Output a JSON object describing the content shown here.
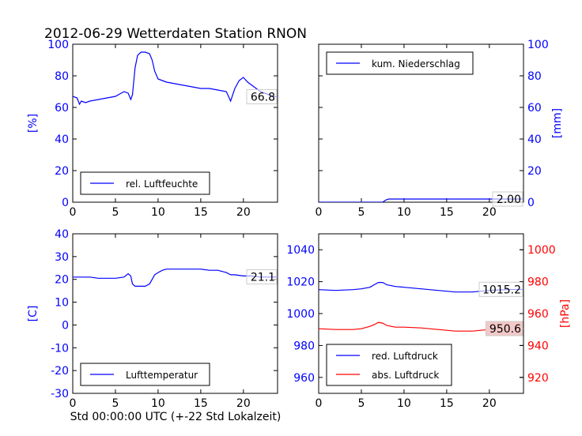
{
  "title": "2012-06-29 Wetterdaten Station RNON",
  "xlabel": "Std 00:00:00 UTC (+-22 Std Lokalzeit)",
  "colors": {
    "blue": "#0000ff",
    "red": "#ff0000",
    "label_box_gray": "#cccccc",
    "label_box_pink": "#f4c8c8"
  },
  "chart_data": [
    {
      "id": "humidity",
      "type": "line",
      "xlim": [
        0,
        24
      ],
      "xticks": [
        0,
        5,
        10,
        15,
        20
      ],
      "ylim": [
        0,
        100
      ],
      "yticks": [
        0,
        20,
        40,
        60,
        80,
        100
      ],
      "ylabel": "[%]",
      "yaxis_side": "left",
      "legend_placement": "lower-left",
      "current_value_label": "66.8",
      "series": [
        {
          "name": "rel. Luftfeuchte",
          "color": "#0000ff",
          "x": [
            0,
            0.5,
            0.8,
            1,
            1.5,
            2,
            3,
            4,
            5,
            6,
            6.5,
            6.8,
            7,
            7.3,
            7.6,
            8,
            8.5,
            9,
            9.3,
            9.6,
            10,
            10.5,
            11,
            12,
            13,
            14,
            15,
            16,
            17,
            18,
            18.5,
            19,
            19.5,
            20,
            20.5,
            21,
            21.5,
            22,
            22.5,
            23,
            23.5,
            24
          ],
          "y": [
            67,
            66,
            62,
            64,
            63,
            64,
            65,
            66,
            67,
            70,
            69,
            65,
            68,
            85,
            93,
            95,
            95,
            94,
            90,
            83,
            78,
            77,
            76,
            75,
            74,
            73,
            72,
            72,
            71,
            70,
            64,
            72,
            77,
            79,
            76,
            74,
            72,
            70,
            69,
            68,
            67,
            66.8
          ]
        }
      ]
    },
    {
      "id": "precipitation",
      "type": "line",
      "xlim": [
        0,
        24
      ],
      "xticks": [
        0,
        5,
        10,
        15,
        20
      ],
      "ylim": [
        0,
        100
      ],
      "yticks": [
        0,
        20,
        40,
        60,
        80,
        100
      ],
      "ylabel": "[mm]",
      "yaxis_side": "right",
      "legend_placement": "upper-left",
      "current_value_label": "2.00",
      "series": [
        {
          "name": "kum. Niederschlag",
          "color": "#0000ff",
          "x": [
            0,
            7.5,
            7.9,
            8.2,
            24
          ],
          "y": [
            0,
            0,
            1.5,
            2,
            2
          ]
        }
      ]
    },
    {
      "id": "temperature",
      "type": "line",
      "xlim": [
        0,
        24
      ],
      "xticks": [
        0,
        5,
        10,
        15,
        20
      ],
      "ylim": [
        -30,
        40
      ],
      "yticks": [
        -30,
        -20,
        -10,
        0,
        10,
        20,
        30,
        40
      ],
      "ylabel": "[C]",
      "yaxis_side": "left",
      "legend_placement": "lower-left",
      "current_value_label": "21.1",
      "series": [
        {
          "name": "Lufttemperatur",
          "color": "#0000ff",
          "x": [
            0,
            1,
            2,
            3,
            4,
            5,
            6,
            6.5,
            6.8,
            7,
            7.3,
            7.6,
            8,
            8.5,
            9,
            9.3,
            9.6,
            10,
            10.5,
            11,
            12,
            13,
            14,
            15,
            16,
            17,
            18,
            18.5,
            19,
            20,
            21,
            22,
            23,
            24
          ],
          "y": [
            21,
            21,
            21,
            20.5,
            20.5,
            20.5,
            21,
            22.5,
            21.5,
            18,
            17,
            17,
            17,
            17,
            18,
            20,
            22,
            23,
            24,
            24.5,
            24.5,
            24.5,
            24.5,
            24.5,
            24,
            24,
            23,
            22,
            22,
            21.5,
            21.5,
            21,
            21,
            21.1
          ]
        }
      ]
    },
    {
      "id": "pressure",
      "type": "line",
      "xlim": [
        0,
        24
      ],
      "xticks": [
        0,
        5,
        10,
        15,
        20
      ],
      "ylim": [
        950,
        1050
      ],
      "yticks": [
        960,
        980,
        1000,
        1020,
        1040
      ],
      "ylabel": "",
      "yaxis_side": "left",
      "y2lim": [
        910,
        1010
      ],
      "y2ticks": [
        920,
        940,
        960,
        980,
        1000
      ],
      "y2label": "[hPa]",
      "legend_placement": "lower-left",
      "current_value_label": "1015.2",
      "current_value_label_2": "950.6",
      "series": [
        {
          "name": "red. Luftdruck",
          "color": "#0000ff",
          "axis": "left",
          "x": [
            0,
            2,
            4,
            5,
            6,
            6.5,
            7,
            7.5,
            8,
            9,
            10,
            12,
            14,
            16,
            18,
            20,
            22,
            24
          ],
          "y": [
            1015,
            1014.5,
            1015,
            1015.5,
            1016.5,
            1018,
            1019.5,
            1019.5,
            1018,
            1017,
            1016.5,
            1015.5,
            1014.5,
            1013.5,
            1013.5,
            1014.5,
            1015,
            1015.2
          ]
        },
        {
          "name": "abs. Luftdruck",
          "color": "#ff0000",
          "axis": "right",
          "x": [
            0,
            2,
            4,
            5,
            6,
            6.5,
            7,
            7.5,
            8,
            9,
            10,
            12,
            14,
            16,
            18,
            20,
            22,
            24
          ],
          "y": [
            950.5,
            950,
            950,
            950.5,
            952,
            953,
            954.5,
            954,
            952.5,
            951.5,
            951.5,
            951,
            950,
            949,
            949,
            950,
            950.5,
            950.6
          ]
        }
      ]
    }
  ]
}
